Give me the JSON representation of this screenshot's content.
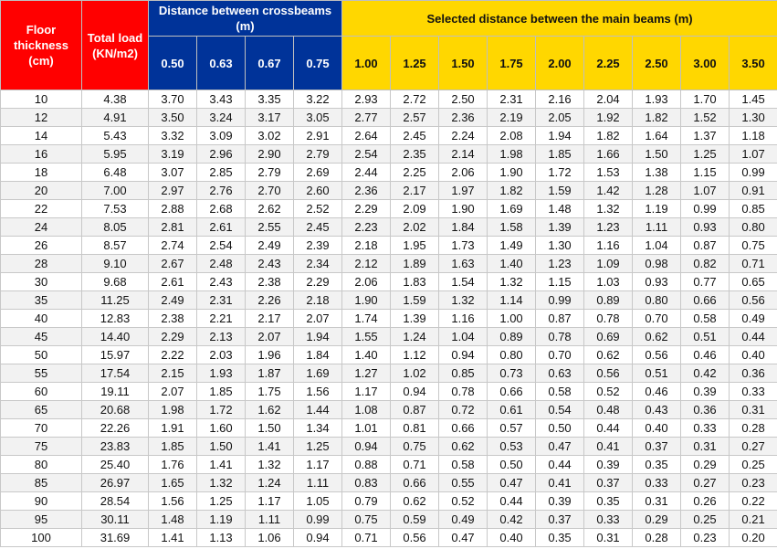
{
  "colors": {
    "red": "#ff0000",
    "blue": "#003399",
    "yellow": "#ffd700"
  },
  "headers": {
    "floor_thickness": "Floor thickness (cm)",
    "total_load": "Total load (KN/m2)",
    "crossbeams_group": "Distance between crossbeams (m)",
    "main_beams_group": "Selected distance between the main beams (m)",
    "crossbeam_spacings": [
      "0.50",
      "0.63",
      "0.67",
      "0.75"
    ],
    "main_beam_spacings": [
      "1.00",
      "1.25",
      "1.50",
      "1.75",
      "2.00",
      "2.25",
      "2.50",
      "3.00",
      "3.50"
    ]
  },
  "rows": [
    [
      "10",
      "4.38",
      "3.70",
      "3.43",
      "3.35",
      "3.22",
      "2.93",
      "2.72",
      "2.50",
      "2.31",
      "2.16",
      "2.04",
      "1.93",
      "1.70",
      "1.45"
    ],
    [
      "12",
      "4.91",
      "3.50",
      "3.24",
      "3.17",
      "3.05",
      "2.77",
      "2.57",
      "2.36",
      "2.19",
      "2.05",
      "1.92",
      "1.82",
      "1.52",
      "1.30"
    ],
    [
      "14",
      "5.43",
      "3.32",
      "3.09",
      "3.02",
      "2.91",
      "2.64",
      "2.45",
      "2.24",
      "2.08",
      "1.94",
      "1.82",
      "1.64",
      "1.37",
      "1.18"
    ],
    [
      "16",
      "5.95",
      "3.19",
      "2.96",
      "2.90",
      "2.79",
      "2.54",
      "2.35",
      "2.14",
      "1.98",
      "1.85",
      "1.66",
      "1.50",
      "1.25",
      "1.07"
    ],
    [
      "18",
      "6.48",
      "3.07",
      "2.85",
      "2.79",
      "2.69",
      "2.44",
      "2.25",
      "2.06",
      "1.90",
      "1.72",
      "1.53",
      "1.38",
      "1.15",
      "0.99"
    ],
    [
      "20",
      "7.00",
      "2.97",
      "2.76",
      "2.70",
      "2.60",
      "2.36",
      "2.17",
      "1.97",
      "1.82",
      "1.59",
      "1.42",
      "1.28",
      "1.07",
      "0.91"
    ],
    [
      "22",
      "7.53",
      "2.88",
      "2.68",
      "2.62",
      "2.52",
      "2.29",
      "2.09",
      "1.90",
      "1.69",
      "1.48",
      "1.32",
      "1.19",
      "0.99",
      "0.85"
    ],
    [
      "24",
      "8.05",
      "2.81",
      "2.61",
      "2.55",
      "2.45",
      "2.23",
      "2.02",
      "1.84",
      "1.58",
      "1.39",
      "1.23",
      "1.11",
      "0.93",
      "0.80"
    ],
    [
      "26",
      "8.57",
      "2.74",
      "2.54",
      "2.49",
      "2.39",
      "2.18",
      "1.95",
      "1.73",
      "1.49",
      "1.30",
      "1.16",
      "1.04",
      "0.87",
      "0.75"
    ],
    [
      "28",
      "9.10",
      "2.67",
      "2.48",
      "2.43",
      "2.34",
      "2.12",
      "1.89",
      "1.63",
      "1.40",
      "1.23",
      "1.09",
      "0.98",
      "0.82",
      "0.71"
    ],
    [
      "30",
      "9.68",
      "2.61",
      "2.43",
      "2.38",
      "2.29",
      "2.06",
      "1.83",
      "1.54",
      "1.32",
      "1.15",
      "1.03",
      "0.93",
      "0.77",
      "0.65"
    ],
    [
      "35",
      "11.25",
      "2.49",
      "2.31",
      "2.26",
      "2.18",
      "1.90",
      "1.59",
      "1.32",
      "1.14",
      "0.99",
      "0.89",
      "0.80",
      "0.66",
      "0.56"
    ],
    [
      "40",
      "12.83",
      "2.38",
      "2.21",
      "2.17",
      "2.07",
      "1.74",
      "1.39",
      "1.16",
      "1.00",
      "0.87",
      "0.78",
      "0.70",
      "0.58",
      "0.49"
    ],
    [
      "45",
      "14.40",
      "2.29",
      "2.13",
      "2.07",
      "1.94",
      "1.55",
      "1.24",
      "1.04",
      "0.89",
      "0.78",
      "0.69",
      "0.62",
      "0.51",
      "0.44"
    ],
    [
      "50",
      "15.97",
      "2.22",
      "2.03",
      "1.96",
      "1.84",
      "1.40",
      "1.12",
      "0.94",
      "0.80",
      "0.70",
      "0.62",
      "0.56",
      "0.46",
      "0.40"
    ],
    [
      "55",
      "17.54",
      "2.15",
      "1.93",
      "1.87",
      "1.69",
      "1.27",
      "1.02",
      "0.85",
      "0.73",
      "0.63",
      "0.56",
      "0.51",
      "0.42",
      "0.36"
    ],
    [
      "60",
      "19.11",
      "2.07",
      "1.85",
      "1.75",
      "1.56",
      "1.17",
      "0.94",
      "0.78",
      "0.66",
      "0.58",
      "0.52",
      "0.46",
      "0.39",
      "0.33"
    ],
    [
      "65",
      "20.68",
      "1.98",
      "1.72",
      "1.62",
      "1.44",
      "1.08",
      "0.87",
      "0.72",
      "0.61",
      "0.54",
      "0.48",
      "0.43",
      "0.36",
      "0.31"
    ],
    [
      "70",
      "22.26",
      "1.91",
      "1.60",
      "1.50",
      "1.34",
      "1.01",
      "0.81",
      "0.66",
      "0.57",
      "0.50",
      "0.44",
      "0.40",
      "0.33",
      "0.28"
    ],
    [
      "75",
      "23.83",
      "1.85",
      "1.50",
      "1.41",
      "1.25",
      "0.94",
      "0.75",
      "0.62",
      "0.53",
      "0.47",
      "0.41",
      "0.37",
      "0.31",
      "0.27"
    ],
    [
      "80",
      "25.40",
      "1.76",
      "1.41",
      "1.32",
      "1.17",
      "0.88",
      "0.71",
      "0.58",
      "0.50",
      "0.44",
      "0.39",
      "0.35",
      "0.29",
      "0.25"
    ],
    [
      "85",
      "26.97",
      "1.65",
      "1.32",
      "1.24",
      "1.11",
      "0.83",
      "0.66",
      "0.55",
      "0.47",
      "0.41",
      "0.37",
      "0.33",
      "0.27",
      "0.23"
    ],
    [
      "90",
      "28.54",
      "1.56",
      "1.25",
      "1.17",
      "1.05",
      "0.79",
      "0.62",
      "0.52",
      "0.44",
      "0.39",
      "0.35",
      "0.31",
      "0.26",
      "0.22"
    ],
    [
      "95",
      "30.11",
      "1.48",
      "1.19",
      "1.11",
      "0.99",
      "0.75",
      "0.59",
      "0.49",
      "0.42",
      "0.37",
      "0.33",
      "0.29",
      "0.25",
      "0.21"
    ],
    [
      "100",
      "31.69",
      "1.41",
      "1.13",
      "1.06",
      "0.94",
      "0.71",
      "0.56",
      "0.47",
      "0.40",
      "0.35",
      "0.31",
      "0.28",
      "0.23",
      "0.20"
    ]
  ]
}
